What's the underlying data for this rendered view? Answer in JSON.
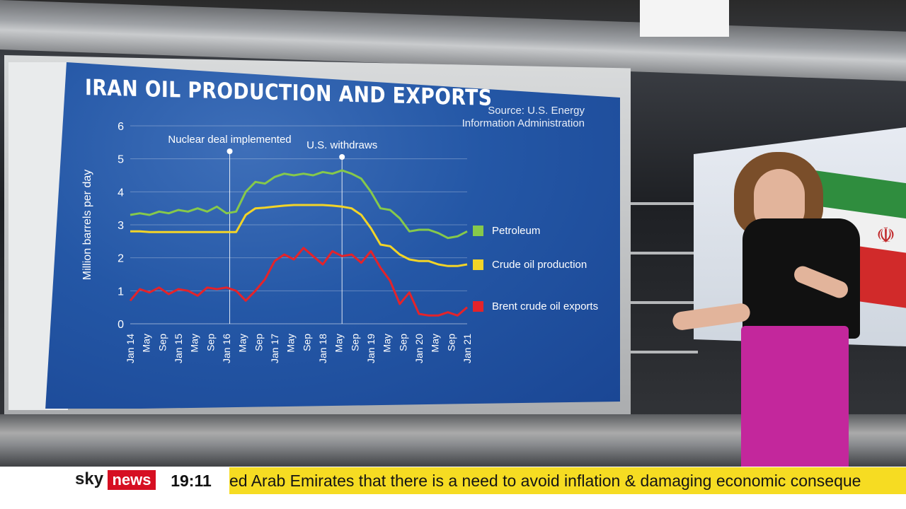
{
  "broadcast": {
    "logo_sky": "sky",
    "logo_news": "news",
    "time": "19:11",
    "ticker_text": "ed Arab Emirates that there is a need to avoid inflation & damaging economic conseque"
  },
  "chart_data": {
    "type": "line",
    "title": "IRAN OIL PRODUCTION AND EXPORTS",
    "source": "Source: U.S. Energy Information Administration",
    "ylabel": "Million barrels per day",
    "ylim": [
      0,
      6
    ],
    "yticks": [
      "0",
      "1",
      "2",
      "3",
      "4",
      "5",
      "6"
    ],
    "xticks": [
      "Jan 14",
      "May",
      "Sep",
      "Jan 15",
      "May",
      "Sep",
      "Jan 16",
      "May",
      "Sep",
      "Jan 17",
      "May",
      "Sep",
      "Jan 18",
      "May",
      "Sep",
      "Jan 19",
      "May",
      "Sep",
      "Jan 20",
      "May",
      "Sep",
      "Jan 21"
    ],
    "annotations": [
      {
        "label": "Nuclear deal implemented",
        "x_index": 6.2
      },
      {
        "label": "U.S. withdraws",
        "x_index": 13.2
      }
    ],
    "grid": true,
    "legend_position": "right",
    "series": [
      {
        "name": "Petroleum",
        "color": "#86c94b",
        "values": [
          3.3,
          3.35,
          3.3,
          3.4,
          3.35,
          3.45,
          3.4,
          3.5,
          3.4,
          3.55,
          3.35,
          3.4,
          4.0,
          4.3,
          4.25,
          4.45,
          4.55,
          4.5,
          4.55,
          4.5,
          4.6,
          4.55,
          4.65,
          4.55,
          4.4,
          4.0,
          3.5,
          3.45,
          3.2,
          2.8,
          2.85,
          2.85,
          2.75,
          2.6,
          2.65,
          2.8
        ]
      },
      {
        "name": "Crude oil production",
        "color": "#f2d428",
        "values": [
          2.8,
          2.8,
          2.78,
          2.78,
          2.78,
          2.78,
          2.78,
          2.78,
          2.78,
          2.78,
          2.78,
          2.78,
          3.3,
          3.5,
          3.52,
          3.55,
          3.58,
          3.6,
          3.6,
          3.6,
          3.6,
          3.58,
          3.55,
          3.5,
          3.3,
          2.9,
          2.4,
          2.35,
          2.1,
          1.95,
          1.9,
          1.9,
          1.8,
          1.75,
          1.75,
          1.8
        ]
      },
      {
        "name": "Brent crude oil exports",
        "color": "#e4232a",
        "values": [
          0.7,
          1.05,
          0.95,
          1.1,
          0.9,
          1.05,
          1.0,
          0.85,
          1.1,
          1.05,
          1.1,
          1.0,
          0.7,
          1.0,
          1.35,
          1.9,
          2.1,
          1.95,
          2.3,
          2.05,
          1.8,
          2.2,
          2.05,
          2.1,
          1.85,
          2.2,
          1.7,
          1.3,
          0.6,
          0.95,
          0.3,
          0.25,
          0.25,
          0.35,
          0.25,
          0.5
        ]
      }
    ]
  }
}
